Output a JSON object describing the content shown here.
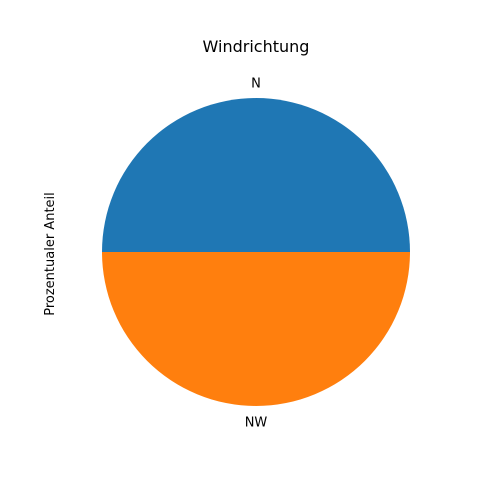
{
  "chart_data": {
    "type": "pie",
    "title": "Windrichtung",
    "ylabel": "Prozentualer Anteil",
    "categories": [
      "N",
      "NW"
    ],
    "values": [
      50,
      50
    ],
    "colors": [
      "#1f77b4",
      "#ff7f0e"
    ],
    "startangle": 0,
    "counterclock": true,
    "legend": "none"
  }
}
